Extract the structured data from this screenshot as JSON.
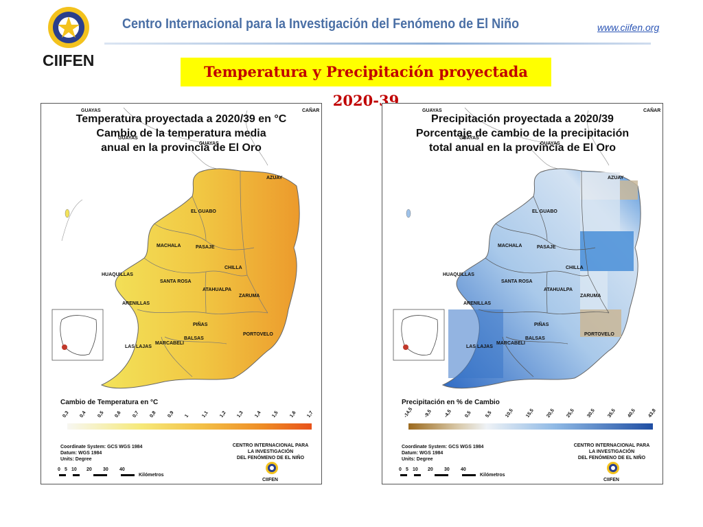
{
  "header": {
    "logo_text": "CIIFEN",
    "org_title": "Centro Internacional para la Investigación del Fenómeno de El Niño",
    "url": "www.ciifen.org",
    "main_title": "Temperatura y Precipitación proyectada 2020-39"
  },
  "colors": {
    "title_bg": "#ffff00",
    "title_text": "#c00000",
    "org_title": "#4a6fa5",
    "temp_low": "#f5f5f0",
    "temp_mid": "#f2c94c",
    "temp_high": "#e8701f",
    "prec_low": "#9c6a1e",
    "prec_mid": "#e8edf3",
    "prec_high": "#1f4ea3"
  },
  "shared_map_labels": {
    "guayas_1": "GUAYAS",
    "guayas_2": "GUAYAS",
    "guayas_3": "GUAYAS",
    "canar": "CAÑAR",
    "azuay": "AZUAY",
    "el_guabo": "EL GUABO",
    "machala": "MACHALA",
    "pasaje": "PASAJE",
    "chilla": "CHILLA",
    "huaquillas": "HUAQUILLAS",
    "santa_rosa": "SANTA ROSA",
    "atahualpa": "ATAHUALPA",
    "zaruma": "ZARUMA",
    "arenillas": "ARENILLAS",
    "pinas": "PIÑAS",
    "portovelo": "PORTOVELO",
    "marcabeli": "MARCABELI",
    "balsas": "BALSAS",
    "las_lajas": "LAS LAJAS"
  },
  "map_footer": {
    "coord_system": "Coordinate System: GCS WGS 1984",
    "datum": "Datum: WGS 1984",
    "units": "Units: Degree",
    "institution_1": "CENTRO INTERNACIONAL PARA",
    "institution_2": "LA INVESTIGACIÓN",
    "institution_3": "DEL FENÓMENO DE EL NIÑO",
    "small_logo_text": "CIIFEN",
    "scale_values": [
      "0",
      "5",
      "10",
      "20",
      "30",
      "40"
    ],
    "scale_unit": "Kilómetros"
  },
  "temperature_map": {
    "title_line_1": "Temperatura proyectada a 2020/39 en °C",
    "title_line_2": "Cambio de la temperatura media",
    "title_line_3": "anual en la provincia de El Oro",
    "legend_title": "Cambio de Temperatura en °C",
    "legend_ticks": [
      "0,3",
      "0,4",
      "0,5",
      "0,6",
      "0,7",
      "0,8",
      "0,9",
      "1",
      "1,1",
      "1,2",
      "1,3",
      "1,4",
      "1,5",
      "1,6",
      "1,7"
    ]
  },
  "precipitation_map": {
    "title_line_1": "Precipitación proyectada a 2020/39",
    "title_line_2": "Porcentaje de cambio de la precipitación",
    "title_line_3": "total anual en la provincia de El Oro",
    "legend_title": "Precipitación en % de Cambio",
    "legend_ticks": [
      "-14,5",
      "-9,5",
      "-4,5",
      "0,5",
      "5,5",
      "10,5",
      "15,5",
      "20,5",
      "25,5",
      "30,5",
      "35,5",
      "40,5",
      "43,8"
    ]
  }
}
